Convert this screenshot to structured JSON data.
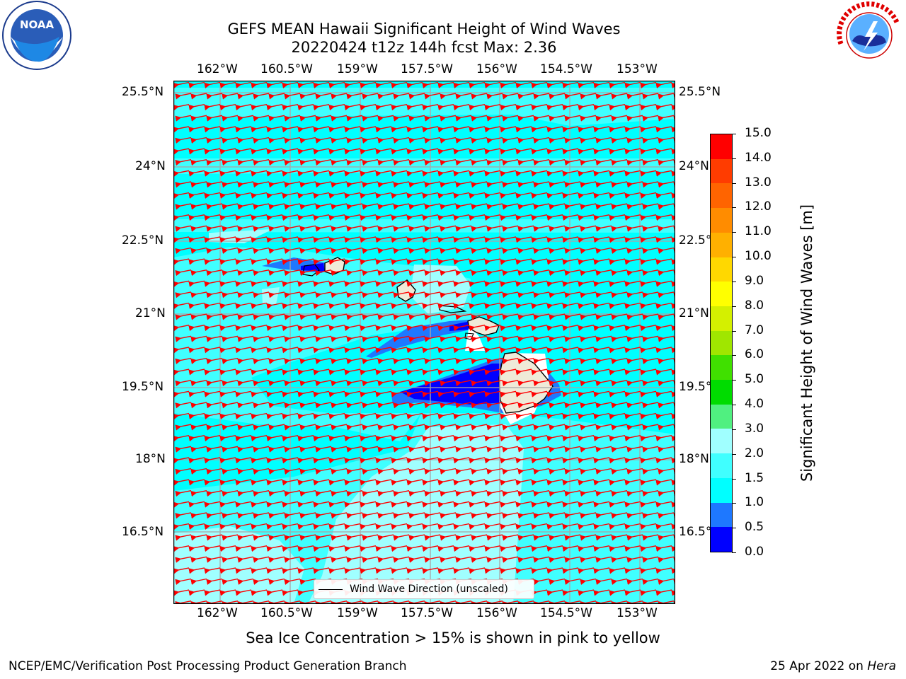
{
  "title": {
    "line1": "GEFS MEAN Hawaii Significant Height of Wind Waves",
    "line2": "20220424 t12z 144h fcst   Max: 2.36"
  },
  "logos": {
    "left": {
      "icon": "noaa-logo",
      "text": "NOAA"
    },
    "right": {
      "icon": "nws-logo",
      "text": "NATIONAL WEATHER SERVICE"
    }
  },
  "map": {
    "lon_labels": [
      "162°W",
      "160.5°W",
      "159°W",
      "157.5°W",
      "156°W",
      "154.5°W",
      "153°W"
    ],
    "lat_labels": [
      "25.5°N",
      "24°N",
      "22.5°N",
      "21°N",
      "19.5°N",
      "18°N",
      "16.5°N"
    ],
    "legend_label": "Wind Wave Direction (unscaled)",
    "arrow_color": "#ff0000"
  },
  "colorbar": {
    "title": "Significant Height of Wind Waves [m]",
    "ticks": [
      "0.0",
      "0.5",
      "1.0",
      "1.5",
      "2.0",
      "3.0",
      "4.0",
      "5.0",
      "6.0",
      "7.0",
      "8.0",
      "9.0",
      "10.0",
      "11.0",
      "12.0",
      "13.0",
      "14.0",
      "15.0"
    ],
    "colors": [
      "#0000ff",
      "#1e78ff",
      "#00ffff",
      "#40ffff",
      "#a0ffff",
      "#50f080",
      "#00dc00",
      "#40e000",
      "#a0e600",
      "#d4f000",
      "#ffff00",
      "#ffd800",
      "#ffb000",
      "#ff8c00",
      "#ff6400",
      "#ff3c00",
      "#ff0000"
    ]
  },
  "note": "Sea Ice Concentration > 15% is shown in pink to yellow",
  "footer": {
    "left": "NCEP/EMC/Verification Post Processing Product Generation Branch",
    "right_prefix": "25 Apr 2022 on ",
    "right_machine": "Hera"
  }
}
